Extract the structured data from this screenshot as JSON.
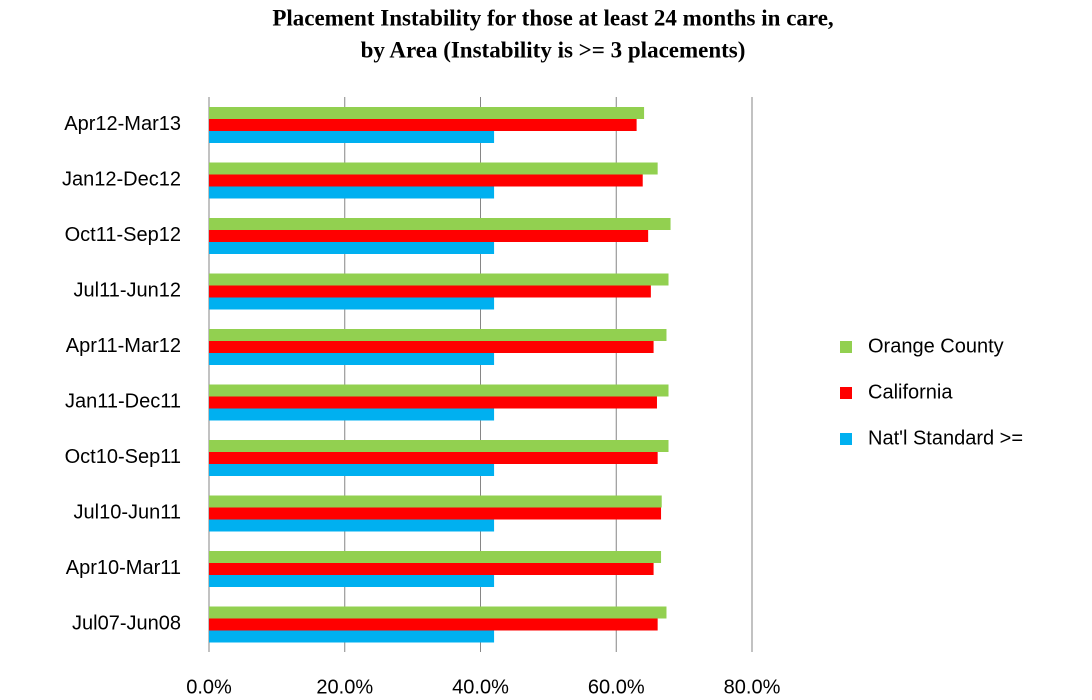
{
  "chart_data": {
    "type": "barh",
    "title": [
      "Placement Instability for those at least 24 months in care,",
      "by Area (Instability is  >= 3 placements)"
    ],
    "categories": [
      "Apr12-Mar13",
      "Jan12-Dec12",
      "Oct11-Sep12",
      "Jul11-Jun12",
      "Apr11-Mar12",
      "Jan11-Dec11",
      "Oct10-Sep11",
      "Jul10-Jun11",
      "Apr10-Mar11",
      "Jul07-Jun08"
    ],
    "series": [
      {
        "name": "Orange County",
        "color": "#92d050",
        "values": [
          64.1,
          66.1,
          68.0,
          67.7,
          67.4,
          67.7,
          67.7,
          66.7,
          66.6,
          67.4
        ]
      },
      {
        "name": "California",
        "color": "#ff0000",
        "values": [
          63.0,
          63.9,
          64.7,
          65.1,
          65.5,
          66.0,
          66.1,
          66.6,
          65.5,
          66.1
        ]
      },
      {
        "name": "Nat'l Standard >=",
        "color": "#00b0f0",
        "values": [
          42.0,
          42.0,
          42.0,
          42.0,
          42.0,
          42.0,
          42.0,
          42.0,
          42.0,
          42.0
        ]
      }
    ],
    "xlim": [
      0,
      80
    ],
    "xticks": [
      {
        "value": 0,
        "label": "0.0%"
      },
      {
        "value": 20,
        "label": "20.0%"
      },
      {
        "value": 40,
        "label": "40.0%"
      },
      {
        "value": 60,
        "label": "60.0%"
      },
      {
        "value": 80,
        "label": "80.0%"
      }
    ],
    "grid": true,
    "legend": "right"
  }
}
